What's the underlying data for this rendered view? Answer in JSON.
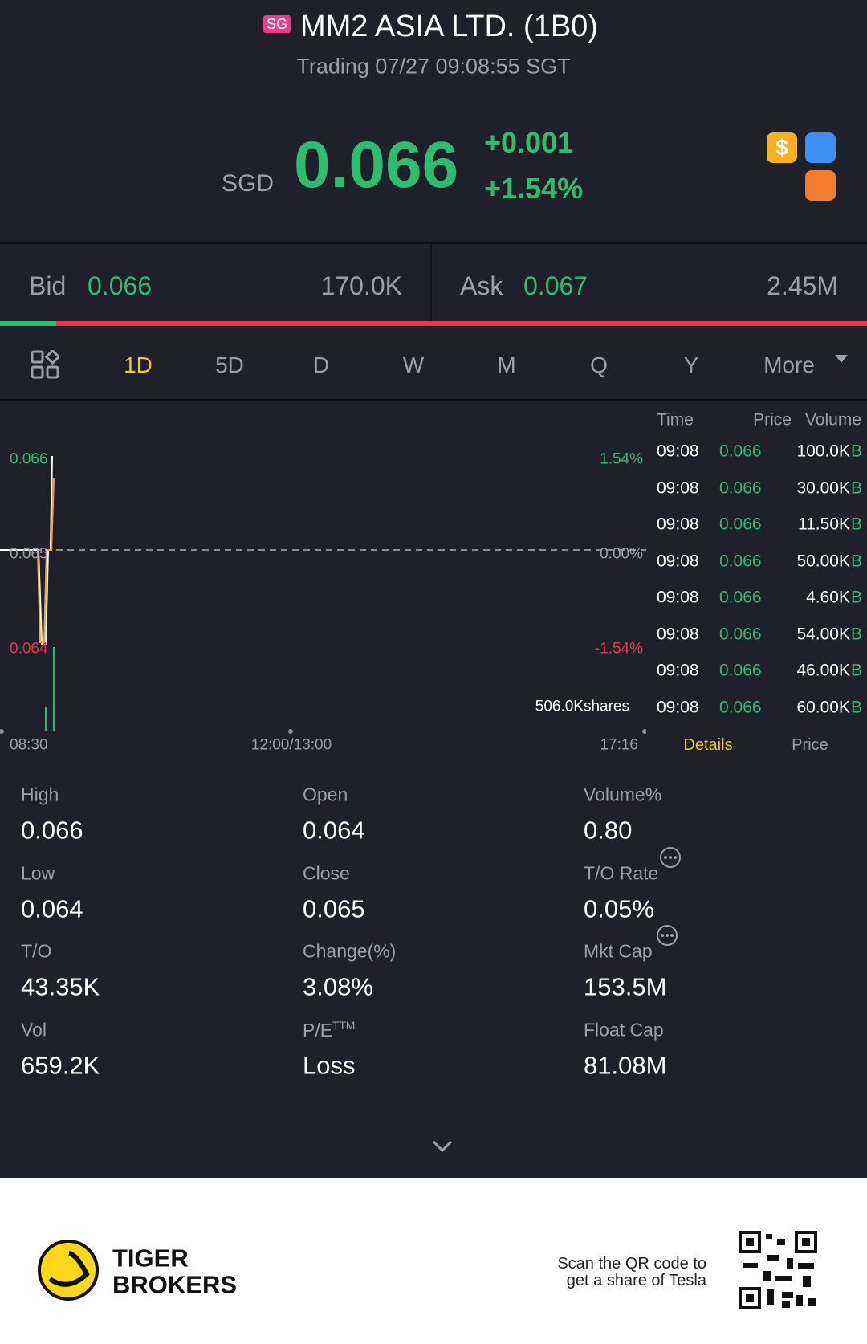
{
  "header": {
    "badge": "SG",
    "title": "MM2 ASIA LTD. (1B0)",
    "status": "Trading 07/27 09:08:55 SGT"
  },
  "quote": {
    "currency": "SGD",
    "price": "0.066",
    "change": "+0.001",
    "change_pct": "+1.54%"
  },
  "bid_ask": {
    "bid_label": "Bid",
    "bid": "0.066",
    "bid_size": "170.0K",
    "ask_label": "Ask",
    "ask": "0.067",
    "ask_size": "2.45M"
  },
  "tabs": [
    "1D",
    "5D",
    "D",
    "W",
    "M",
    "Q",
    "Y",
    "More"
  ],
  "chart": {
    "price_labels": [
      "0.066",
      "0.065",
      "0.064"
    ],
    "pct_labels": [
      "1.54%",
      "0.00%",
      "-1.54%"
    ],
    "volume_label": "506.0Kshares",
    "times": [
      "08:30",
      "12:00/13:00",
      "17:16"
    ]
  },
  "trades": {
    "headers": [
      "Time",
      "Price",
      "Volume"
    ],
    "rows": [
      [
        "09:08",
        "0.066",
        "100.0K",
        "B"
      ],
      [
        "09:08",
        "0.066",
        "30.00K",
        "B"
      ],
      [
        "09:08",
        "0.066",
        "11.50K",
        "B"
      ],
      [
        "09:08",
        "0.066",
        "50.00K",
        "B"
      ],
      [
        "09:08",
        "0.066",
        "4.60K",
        "B"
      ],
      [
        "09:08",
        "0.066",
        "54.00K",
        "B"
      ],
      [
        "09:08",
        "0.066",
        "46.00K",
        "B"
      ],
      [
        "09:08",
        "0.066",
        "60.00K",
        "B"
      ]
    ],
    "tabs": [
      "Details",
      "Price"
    ]
  },
  "stats": [
    {
      "label": "High",
      "value": "0.066"
    },
    {
      "label": "Open",
      "value": "0.064"
    },
    {
      "label": "Volume%",
      "value": "0.80"
    },
    {
      "label": "Low",
      "value": "0.064"
    },
    {
      "label": "Close",
      "value": "0.065"
    },
    {
      "label": "T/O Rate",
      "value": "0.05%"
    },
    {
      "label": "T/O",
      "value": "43.35K"
    },
    {
      "label": "Change(%)",
      "value": "3.08%"
    },
    {
      "label": "Mkt Cap",
      "value": "153.5M"
    },
    {
      "label": "Vol",
      "value": "659.2K"
    },
    {
      "label": "P/E",
      "sup": "TTM",
      "value": "Loss"
    },
    {
      "label": "Float Cap",
      "value": "81.08M"
    }
  ],
  "footer": {
    "brand": [
      "TIGER",
      "BROKERS"
    ],
    "scan_text": [
      "Scan the QR code to",
      "get a share of Tesla"
    ]
  }
}
